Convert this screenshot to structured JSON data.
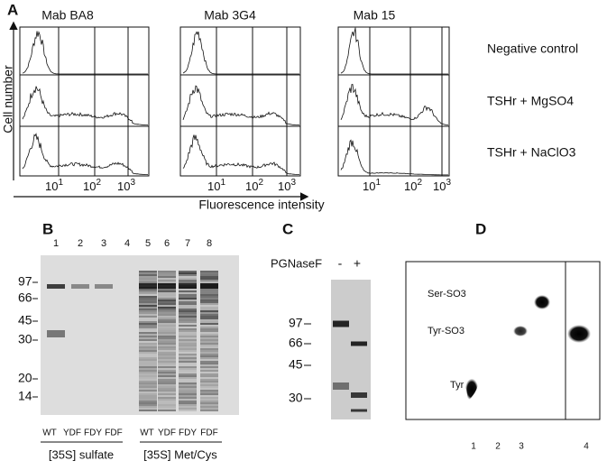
{
  "panels": {
    "A": {
      "label": "A",
      "columns": [
        "Mab BA8",
        "Mab 3G4",
        "Mab 15"
      ],
      "rows": [
        "Negative control",
        "TSHr + MgSO4",
        "TSHr + NaClO3"
      ],
      "y_label": "Cell number",
      "x_label": "Fluorescence intensity",
      "x_ticks": [
        {
          "base": "10",
          "exp": "1"
        },
        {
          "base": "10",
          "exp": "2"
        },
        {
          "base": "10",
          "exp": "3"
        }
      ]
    },
    "B": {
      "label": "B",
      "lanes": [
        "1",
        "2",
        "3",
        "4",
        "5",
        "6",
        "7",
        "8"
      ],
      "markers": [
        "97",
        "66",
        "45",
        "30",
        "20",
        "14"
      ],
      "lane_labels": [
        "WT",
        "YDF",
        "FDY",
        "FDF",
        "WT",
        "YDF",
        "FDY",
        "FDF"
      ],
      "groups": [
        "[35S] sulfate",
        "[35S] Met/Cys"
      ]
    },
    "C": {
      "label": "C",
      "enzyme": "PGNaseF",
      "lanes": [
        "-",
        "+"
      ],
      "markers": [
        "97",
        "66",
        "45",
        "30"
      ]
    },
    "D": {
      "label": "D",
      "spots": [
        "Ser-SO3",
        "Tyr-SO3",
        "Tyr"
      ],
      "lanes": [
        "1",
        "2",
        "3",
        "4"
      ]
    }
  }
}
